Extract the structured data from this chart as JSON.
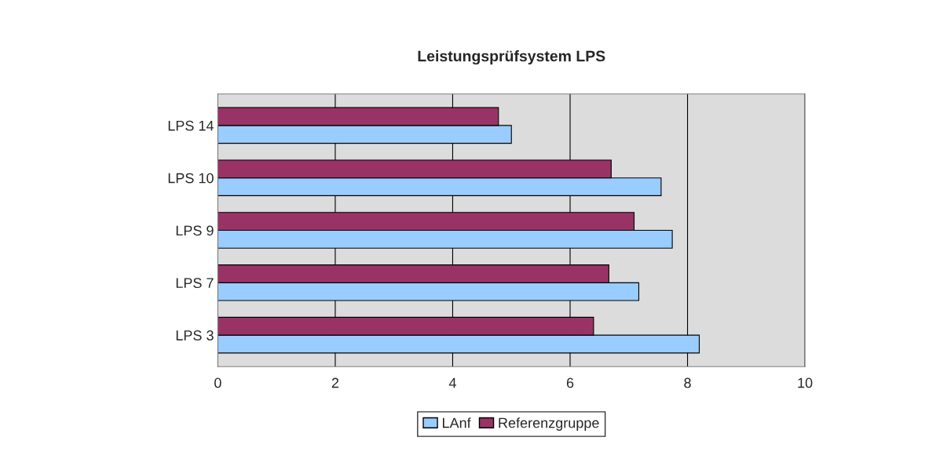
{
  "chart_data": {
    "type": "bar",
    "orientation": "horizontal",
    "title": "Leistungsprüfsystem LPS",
    "categories": [
      "LPS 14",
      "LPS 10",
      "LPS 9",
      "LPS 7",
      "LPS 3"
    ],
    "series": [
      {
        "name": "LAnf",
        "color": "#99ccff",
        "values": [
          5.0,
          7.55,
          7.74,
          7.17,
          8.2
        ]
      },
      {
        "name": "Referenzgruppe",
        "color": "#993366",
        "values": [
          4.78,
          6.7,
          7.09,
          6.66,
          6.4
        ]
      }
    ],
    "xlim": [
      0,
      10
    ],
    "xticks": [
      0,
      2,
      4,
      6,
      8,
      10
    ],
    "grid": "x",
    "legend": "bottom"
  }
}
